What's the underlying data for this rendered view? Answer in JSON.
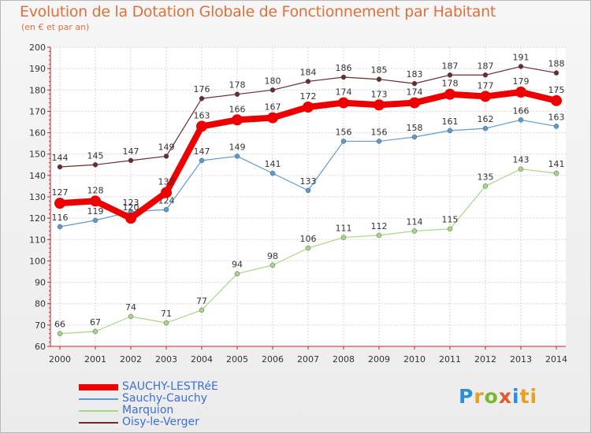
{
  "header": {
    "title": "Evolution de la Dotation Globale de Fonctionnement par Habitant",
    "subtitle": "(en € et par an)"
  },
  "logo": {
    "letters": [
      "P",
      "r",
      "o",
      "x",
      "i",
      "ti"
    ]
  },
  "chart_data": {
    "type": "line",
    "title": "Evolution de la Dotation Globale de Fonctionnement par Habitant",
    "subtitle": "(en € et par an)",
    "xlabel": "",
    "ylabel": "",
    "x": [
      "2000",
      "2001",
      "2002",
      "2003",
      "2004",
      "2005",
      "2006",
      "2007",
      "2008",
      "2009",
      "2010",
      "2011",
      "2012",
      "2013",
      "2014"
    ],
    "ylim": [
      60,
      200
    ],
    "yticks": [
      60,
      70,
      80,
      90,
      100,
      110,
      120,
      130,
      140,
      150,
      160,
      170,
      180,
      190,
      200
    ],
    "grid": true,
    "legend_position": "bottom-left",
    "series": [
      {
        "name": "Oisy-le-Verger",
        "color": "#6b2a2e",
        "width": 1.2,
        "values": [
          144,
          145,
          147,
          149,
          176,
          178,
          180,
          184,
          186,
          185,
          183,
          187,
          187,
          191,
          188
        ]
      },
      {
        "name": "Sauchy-Cauchy",
        "color": "#5a9ad4",
        "width": 1.2,
        "values": [
          116,
          119,
          123,
          124,
          147,
          149,
          141,
          133,
          156,
          156,
          158,
          161,
          162,
          166,
          163
        ]
      },
      {
        "name": "Marquion",
        "color": "#a6d884",
        "width": 1.2,
        "values": [
          66,
          67,
          74,
          71,
          77,
          94,
          98,
          106,
          111,
          112,
          114,
          115,
          135,
          143,
          141
        ]
      },
      {
        "name": "SAUCHY-LESTRéE",
        "color": "#ee0000",
        "width": 8,
        "values": [
          127,
          128,
          120,
          132,
          163,
          166,
          167,
          172,
          174,
          173,
          174,
          178,
          177,
          179,
          175
        ]
      }
    ],
    "legend_order": [
      "SAUCHY-LESTRéE",
      "Sauchy-Cauchy",
      "Marquion",
      "Oisy-le-Verger"
    ]
  }
}
